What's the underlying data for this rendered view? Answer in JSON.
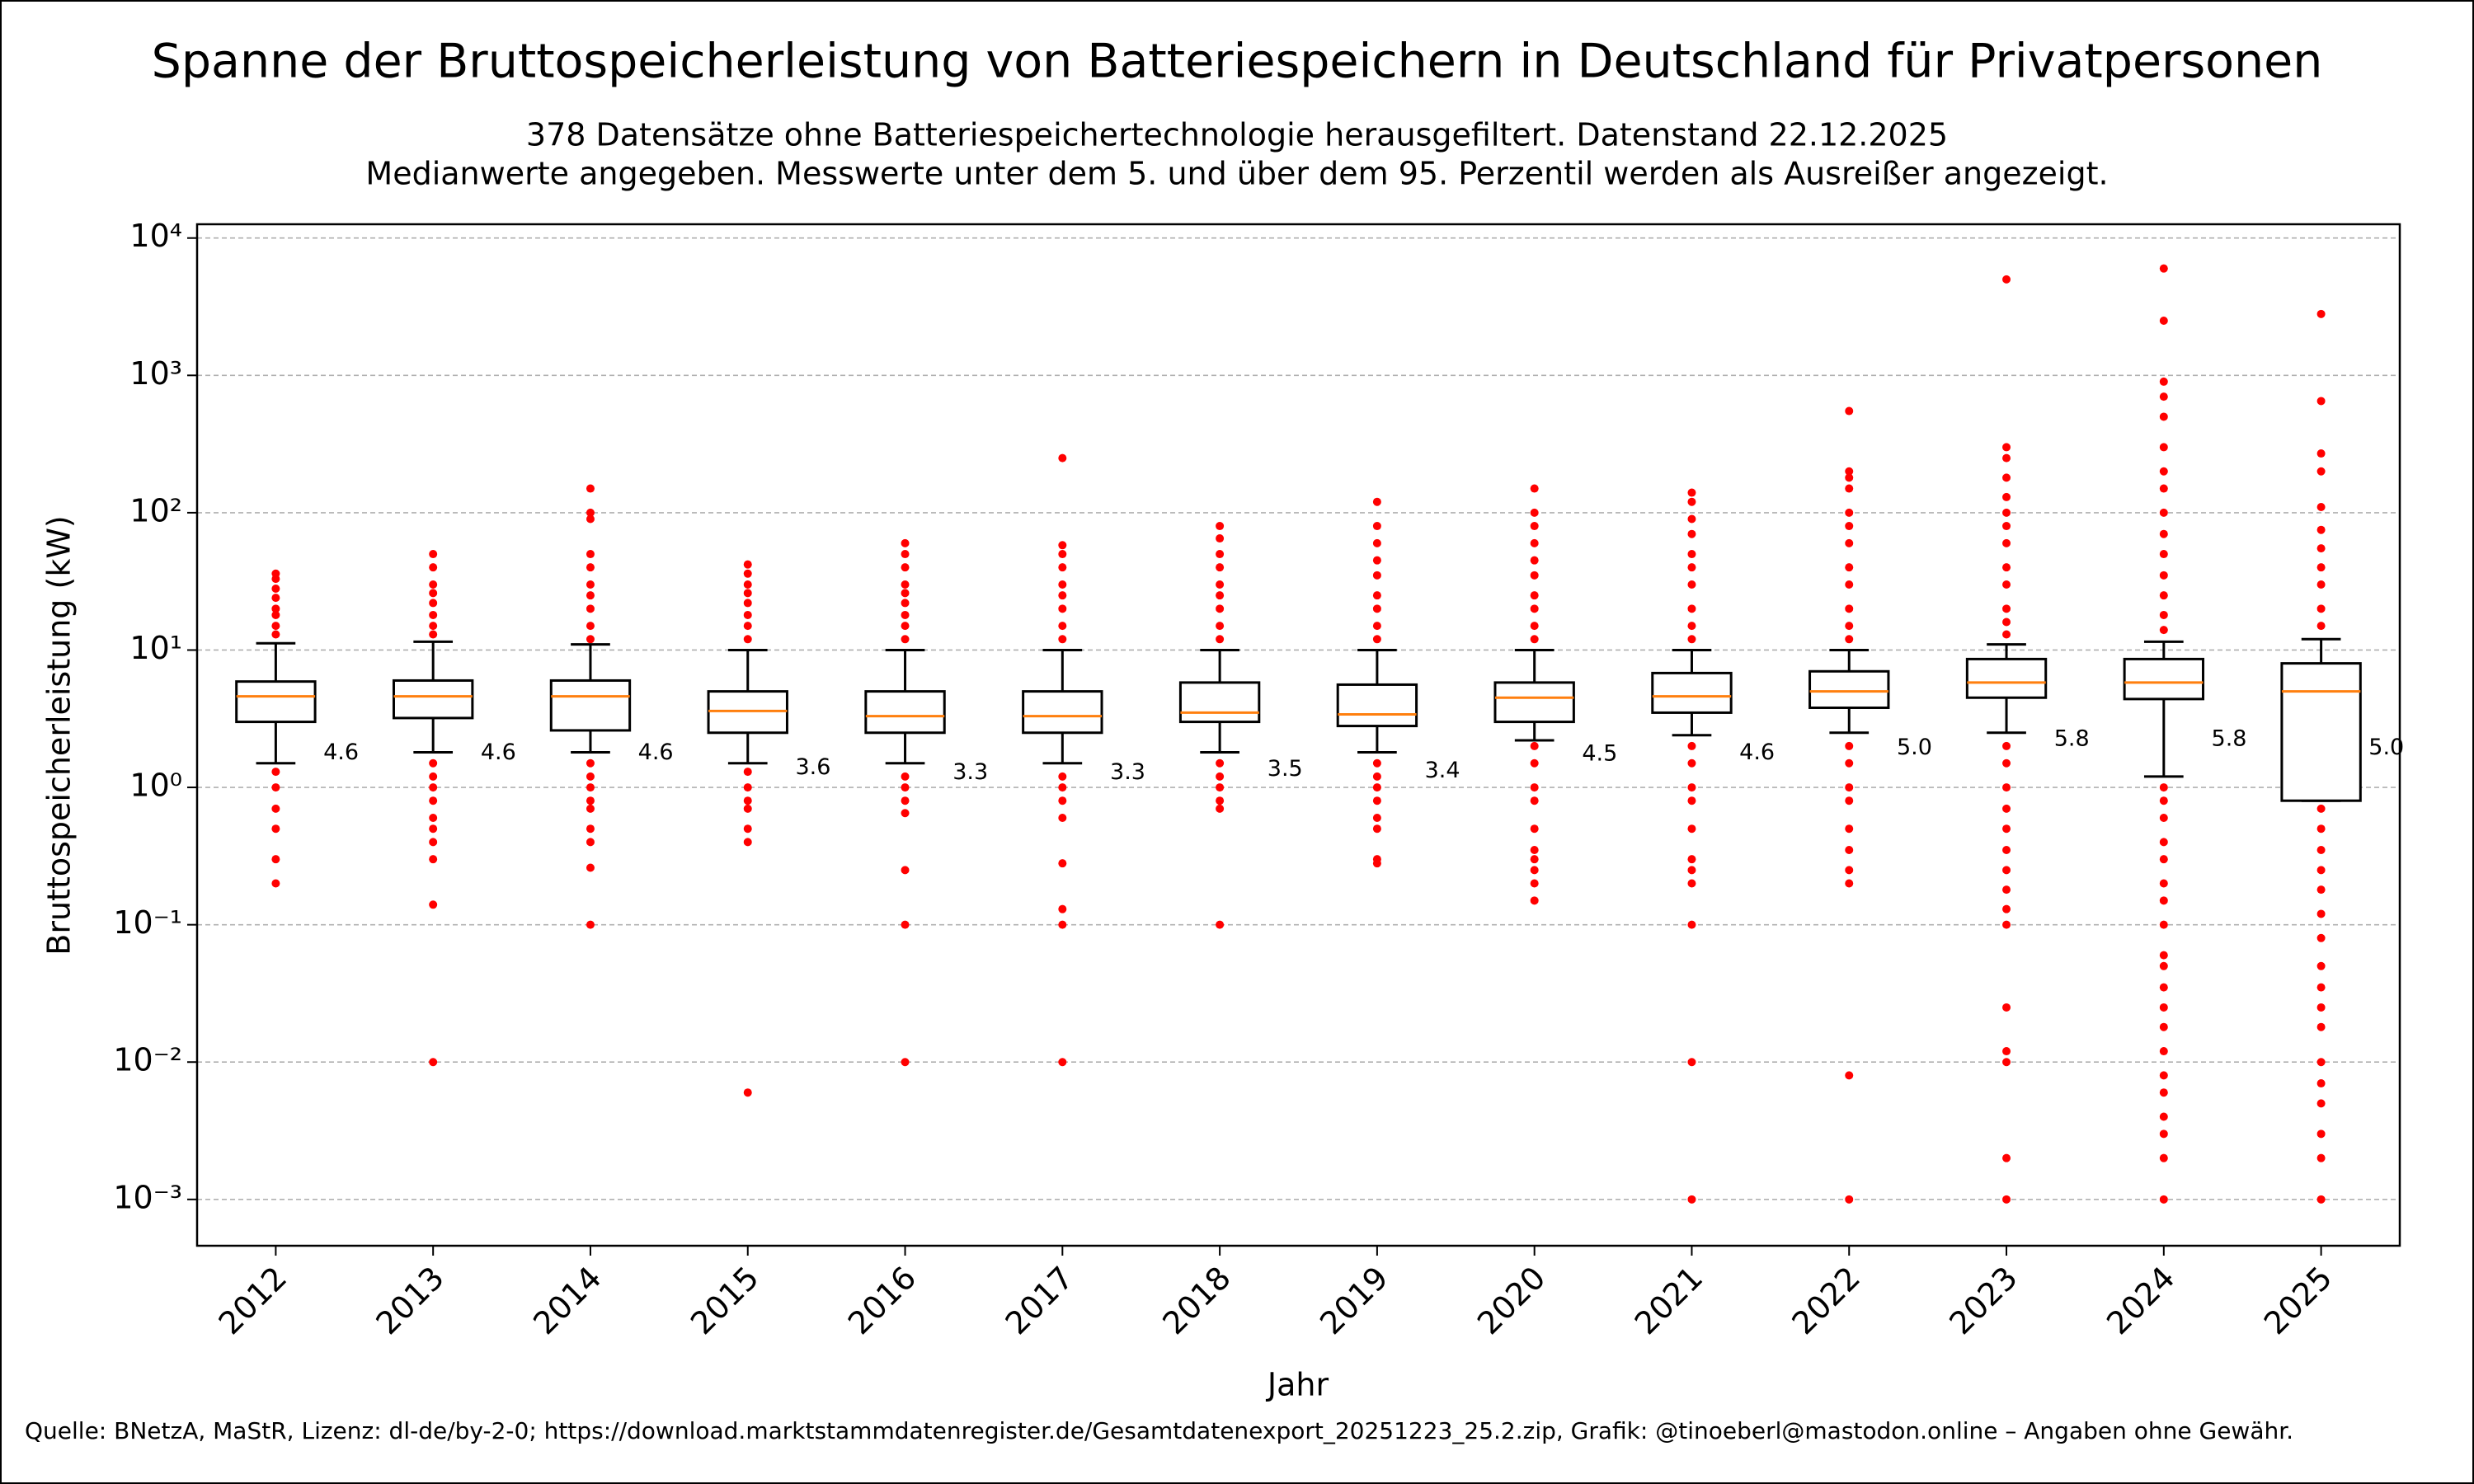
{
  "chart_data": {
    "type": "box",
    "title": "Spanne der Bruttospeicherleistung von Batteriespeichern in Deutschland für Privatpersonen",
    "subtitle": [
      "378 Datensätze ohne Batteriespeichertechnologie herausgefiltert. Datenstand 22.12.2025",
      "Medianwerte angegeben. Messwerte unter dem 5. und über dem 95. Perzentil werden als Ausreißer angezeigt."
    ],
    "xlabel": "Jahr",
    "ylabel": "Bruttospeicherleistung (kW)",
    "source": "Quelle: BNetzA, MaStR, Lizenz: dl-de/by-2-0; https://download.marktstammdatenregister.de/Gesamtdatenexport_20251223_25.2.zip, Grafik: @tinoeberl@mastodon.online – Angaben ohne Gewähr.",
    "categories": [
      "2012",
      "2013",
      "2014",
      "2015",
      "2016",
      "2017",
      "2018",
      "2019",
      "2020",
      "2021",
      "2022",
      "2023",
      "2024",
      "2025"
    ],
    "log_scale": true,
    "grid": true,
    "box_color": "#000000",
    "median_color": "#ff7f0e",
    "flier_color": "#ff0000",
    "ylim": [
      0.00046,
      12600
    ],
    "yticks": [
      {
        "value": 0.001,
        "label": "10⁻³"
      },
      {
        "value": 0.01,
        "label": "10⁻²"
      },
      {
        "value": 0.1,
        "label": "10⁻¹"
      },
      {
        "value": 1,
        "label": "10⁰"
      },
      {
        "value": 10,
        "label": "10¹"
      },
      {
        "value": 100,
        "label": "10²"
      },
      {
        "value": 1000,
        "label": "10³"
      },
      {
        "value": 10000,
        "label": "10⁴"
      }
    ],
    "value_labels": [
      "4.6",
      "4.6",
      "4.6",
      "3.6",
      "3.3",
      "3.3",
      "3.5",
      "3.4",
      "4.5",
      "4.6",
      "5.0",
      "5.8",
      "5.8",
      "5.0"
    ],
    "boxes": [
      {
        "whislo": 1.5,
        "q1": 3.0,
        "med": 4.6,
        "q3": 5.9,
        "whishi": 11.2,
        "fliers": [
          13,
          15,
          18,
          20,
          24,
          28,
          33,
          36,
          1.3,
          1.0,
          0.7,
          0.5,
          0.3,
          0.2
        ]
      },
      {
        "whislo": 1.8,
        "q1": 3.2,
        "med": 4.6,
        "q3": 6.0,
        "whishi": 11.5,
        "fliers": [
          13,
          15,
          18,
          22,
          26,
          30,
          40,
          50,
          1.5,
          1.2,
          1.0,
          0.8,
          0.6,
          0.5,
          0.4,
          0.3,
          0.14,
          0.01
        ]
      },
      {
        "whislo": 1.8,
        "q1": 2.6,
        "med": 4.6,
        "q3": 6.0,
        "whishi": 11,
        "fliers": [
          12,
          15,
          20,
          25,
          30,
          40,
          50,
          90,
          100,
          150,
          1.5,
          1.2,
          1.0,
          0.8,
          0.7,
          0.5,
          0.4,
          0.26,
          0.1
        ]
      },
      {
        "whislo": 1.5,
        "q1": 2.5,
        "med": 3.6,
        "q3": 5.0,
        "whishi": 10,
        "fliers": [
          12,
          15,
          18,
          22,
          26,
          30,
          36,
          42,
          1.3,
          1.0,
          0.8,
          0.7,
          0.5,
          0.4,
          0.006
        ]
      },
      {
        "whislo": 1.5,
        "q1": 2.5,
        "med": 3.3,
        "q3": 5.0,
        "whishi": 10,
        "fliers": [
          12,
          15,
          18,
          22,
          26,
          30,
          40,
          50,
          60,
          1.2,
          1.0,
          0.8,
          0.65,
          0.25,
          0.1,
          0.01
        ]
      },
      {
        "whislo": 1.5,
        "q1": 2.5,
        "med": 3.3,
        "q3": 5.0,
        "whishi": 10,
        "fliers": [
          12,
          15,
          20,
          25,
          30,
          40,
          50,
          58,
          250,
          1.2,
          1.0,
          0.8,
          0.6,
          0.28,
          0.13,
          0.1,
          0.01
        ]
      },
      {
        "whislo": 1.8,
        "q1": 3.0,
        "med": 3.5,
        "q3": 5.8,
        "whishi": 10,
        "fliers": [
          12,
          15,
          20,
          25,
          30,
          40,
          50,
          65,
          80,
          1.5,
          1.2,
          1.0,
          0.8,
          0.7,
          0.1
        ]
      },
      {
        "whislo": 1.8,
        "q1": 2.8,
        "med": 3.4,
        "q3": 5.6,
        "whishi": 10,
        "fliers": [
          12,
          15,
          20,
          25,
          35,
          45,
          60,
          80,
          120,
          1.5,
          1.2,
          1.0,
          0.8,
          0.6,
          0.5,
          0.3,
          0.28
        ]
      },
      {
        "whislo": 2.2,
        "q1": 3.0,
        "med": 4.5,
        "q3": 5.8,
        "whishi": 10,
        "fliers": [
          12,
          15,
          20,
          25,
          35,
          45,
          60,
          80,
          100,
          150,
          2.0,
          1.5,
          1.0,
          0.8,
          0.5,
          0.35,
          0.3,
          0.25,
          0.2,
          0.15
        ]
      },
      {
        "whislo": 2.4,
        "q1": 3.5,
        "med": 4.6,
        "q3": 6.8,
        "whishi": 10,
        "fliers": [
          12,
          15,
          20,
          30,
          40,
          50,
          70,
          90,
          120,
          140,
          2.0,
          1.5,
          1.0,
          0.8,
          0.5,
          0.3,
          0.25,
          0.2,
          0.1,
          0.01,
          0.001
        ]
      },
      {
        "whislo": 2.5,
        "q1": 3.8,
        "med": 5.0,
        "q3": 7.0,
        "whishi": 10,
        "fliers": [
          12,
          15,
          20,
          30,
          40,
          60,
          80,
          100,
          150,
          180,
          200,
          550,
          2.0,
          1.5,
          1.0,
          0.8,
          0.5,
          0.35,
          0.25,
          0.2,
          0.008,
          0.001
        ]
      },
      {
        "whislo": 2.5,
        "q1": 4.5,
        "med": 5.8,
        "q3": 8.6,
        "whishi": 11,
        "fliers": [
          13,
          16,
          20,
          30,
          40,
          60,
          80,
          100,
          130,
          180,
          250,
          300,
          5000,
          2.0,
          1.5,
          1.0,
          0.7,
          0.5,
          0.35,
          0.25,
          0.18,
          0.13,
          0.1,
          0.025,
          0.012,
          0.01,
          0.002,
          0.001
        ]
      },
      {
        "whislo": 1.2,
        "q1": 4.4,
        "med": 5.8,
        "q3": 8.6,
        "whishi": 11.5,
        "fliers": [
          14,
          18,
          25,
          35,
          50,
          70,
          100,
          150,
          200,
          300,
          500,
          700,
          900,
          2500,
          6000,
          1.0,
          0.8,
          0.6,
          0.4,
          0.3,
          0.2,
          0.15,
          0.1,
          0.06,
          0.05,
          0.035,
          0.025,
          0.018,
          0.012,
          0.008,
          0.006,
          0.004,
          0.003,
          0.002,
          0.001
        ]
      },
      {
        "whislo": 0.8,
        "q1": 0.8,
        "med": 5.0,
        "q3": 8.0,
        "whishi": 12,
        "fliers": [
          15,
          20,
          30,
          40,
          55,
          75,
          110,
          200,
          270,
          650,
          2800,
          0.7,
          0.5,
          0.35,
          0.25,
          0.18,
          0.12,
          0.08,
          0.05,
          0.035,
          0.025,
          0.018,
          0.01,
          0.007,
          0.005,
          0.003,
          0.002,
          0.001
        ]
      }
    ]
  }
}
